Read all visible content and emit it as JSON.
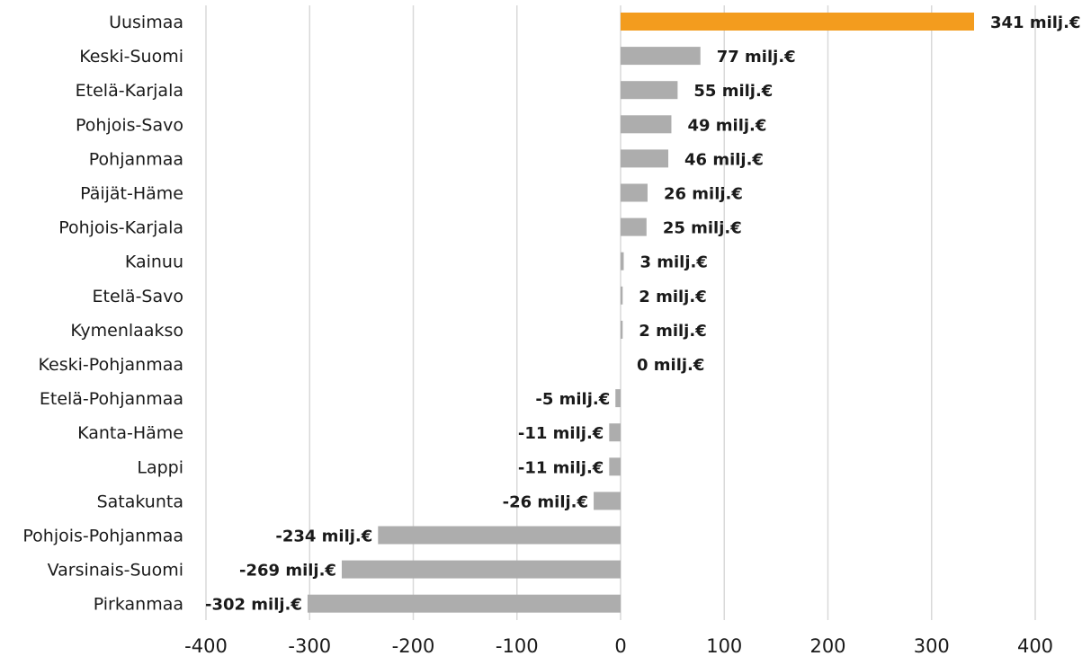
{
  "chart_data": {
    "type": "bar",
    "orientation": "horizontal",
    "title": "",
    "xlabel": "",
    "ylabel": "",
    "xlim": [
      -400,
      400
    ],
    "x_ticks": [
      "-400",
      "-300",
      "-200",
      "-100",
      "0",
      "100",
      "200",
      "300",
      "400"
    ],
    "x_tick_values": [
      -400,
      -300,
      -200,
      -100,
      0,
      100,
      200,
      300,
      400
    ],
    "grid": "vertical",
    "legend": "none",
    "categories": [
      "Uusimaa",
      "Keski-Suomi",
      "Etelä-Karjala",
      "Pohjois-Savo",
      "Pohjanmaa",
      "Päijät-Häme",
      "Pohjois-Karjala",
      "Kainuu",
      "Etelä-Savo",
      "Kymenlaakso",
      "Keski-Pohjanmaa",
      "Etelä-Pohjanmaa",
      "Kanta-Häme",
      "Lappi",
      "Satakunta",
      "Pohjois-Pohjanmaa",
      "Varsinais-Suomi",
      "Pirkanmaa"
    ],
    "values": [
      341,
      77,
      55,
      49,
      46,
      26,
      25,
      3,
      2,
      2,
      0,
      -5,
      -11,
      -11,
      -26,
      -234,
      -269,
      -302
    ],
    "data_labels": [
      "341 milj.€",
      "77 milj.€",
      "55 milj.€",
      "49 milj.€",
      "46 milj.€",
      "26 milj.€",
      "25 milj.€",
      "3 milj.€",
      "2 milj.€",
      "2 milj.€",
      "0 milj.€",
      "-5 milj.€",
      "-11 milj.€",
      "-11 milj.€",
      "-26 milj.€",
      "-234 milj.€",
      "-269 milj.€",
      "-302 milj.€"
    ],
    "highlight_category": "Uusimaa",
    "colors": {
      "highlight": "#F39C1E",
      "default": "#ADADAD",
      "grid": "#D9D9D9"
    }
  }
}
